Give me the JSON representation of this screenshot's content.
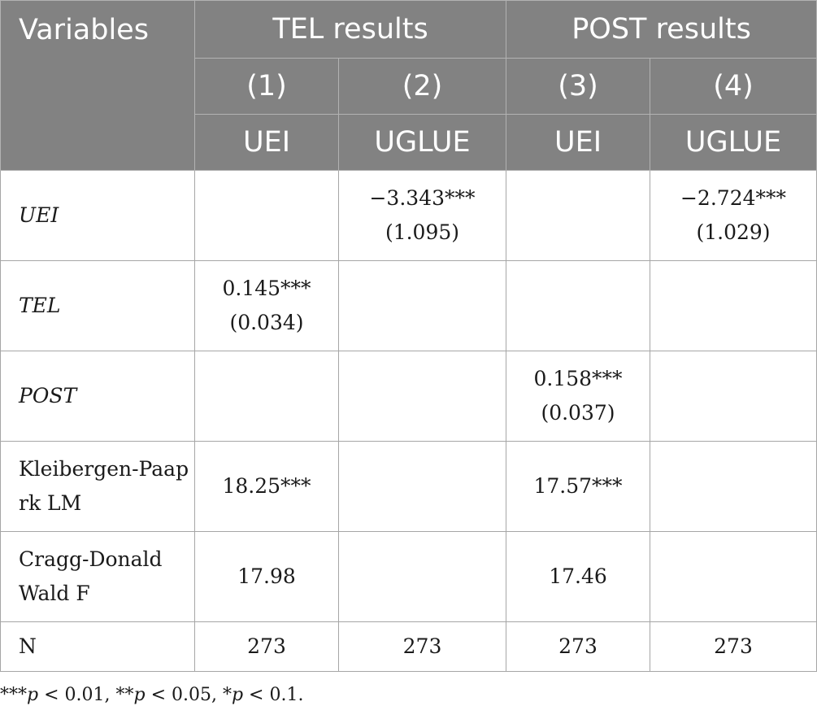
{
  "header": {
    "variables_label": "Variables",
    "groups": [
      "TEL results",
      "POST results"
    ],
    "column_numbers": [
      "(1)",
      "(2)",
      "(3)",
      "(4)"
    ],
    "column_depvars": [
      "UEI",
      "UGLUE",
      "UEI",
      "UGLUE"
    ]
  },
  "rows": {
    "uei": {
      "label": "UEI",
      "c2_coef": "−3.343***",
      "c2_se": "(1.095)",
      "c4_coef": "−2.724***",
      "c4_se": "(1.029)"
    },
    "tel": {
      "label": "TEL",
      "c1_coef": "0.145***",
      "c1_se": "(0.034)"
    },
    "post": {
      "label": "POST",
      "c3_coef": "0.158***",
      "c3_se": "(0.037)"
    },
    "kp": {
      "label_line1": "Kleibergen-Paap",
      "label_line2": "rk LM",
      "c1": "18.25***",
      "c3": "17.57***"
    },
    "cd": {
      "label_line1": "Cragg-Donald",
      "label_line2": "Wald F",
      "c1": "17.98",
      "c3": "17.46"
    },
    "n": {
      "label": "N",
      "values": [
        "273",
        "273",
        "273",
        "273"
      ]
    }
  },
  "note": {
    "stars1": "***",
    "p1": "p",
    "t1": " < 0.01, ",
    "stars2": "**",
    "p2": "p",
    "t2": " < 0.05, ",
    "stars3": "*",
    "p3": "p",
    "t3": " < 0.1."
  }
}
